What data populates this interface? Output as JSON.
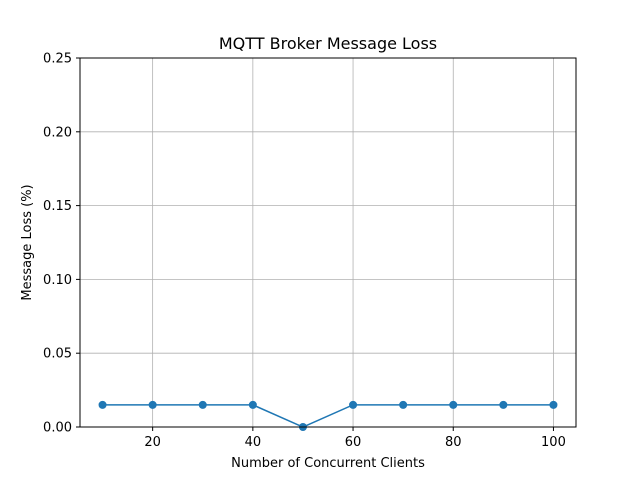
{
  "chart_data": {
    "type": "line",
    "title": "MQTT Broker Message Loss",
    "xlabel": "Number of Concurrent Clients",
    "ylabel": "Message Loss (%)",
    "x": [
      10,
      20,
      30,
      40,
      50,
      60,
      70,
      80,
      90,
      100
    ],
    "series": [
      {
        "values": [
          0.015,
          0.015,
          0.015,
          0.015,
          0.0,
          0.015,
          0.015,
          0.015,
          0.015,
          0.015
        ],
        "color": "#1f77b4",
        "marker": "circle"
      }
    ],
    "xlim": [
      5.5,
      104.5
    ],
    "ylim": [
      0,
      0.25
    ],
    "xticks": [
      20,
      40,
      60,
      80,
      100
    ],
    "xtick_labels": [
      "20",
      "40",
      "60",
      "80",
      "100"
    ],
    "yticks": [
      0.0,
      0.05,
      0.1,
      0.15,
      0.2,
      0.25
    ],
    "ytick_labels": [
      "0.00",
      "0.05",
      "0.10",
      "0.15",
      "0.20",
      "0.25"
    ],
    "grid": true,
    "legend": "none"
  }
}
